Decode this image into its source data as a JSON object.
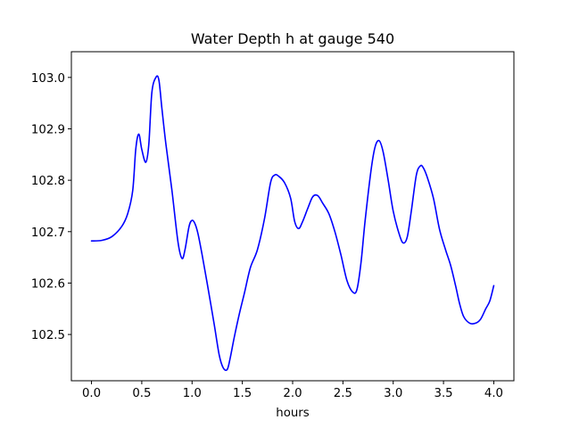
{
  "chart_data": {
    "type": "line",
    "title": "Water Depth h at gauge 540",
    "xlabel": "hours",
    "ylabel": "",
    "xlim": [
      -0.2,
      4.2
    ],
    "ylim": [
      102.41,
      103.05
    ],
    "grid": false,
    "x_ticks": [
      0.0,
      0.5,
      1.0,
      1.5,
      2.0,
      2.5,
      3.0,
      3.5,
      4.0
    ],
    "x_tick_labels": [
      "0.0",
      "0.5",
      "1.0",
      "1.5",
      "2.0",
      "2.5",
      "3.0",
      "3.5",
      "4.0"
    ],
    "y_ticks": [
      102.5,
      102.6,
      102.7,
      102.8,
      102.9,
      103.0
    ],
    "y_tick_labels": [
      "102.5",
      "102.6",
      "102.7",
      "102.8",
      "102.9",
      "103.0"
    ],
    "series": [
      {
        "color": "#0000ff",
        "x": [
          0.0,
          0.1,
          0.2,
          0.3,
          0.36,
          0.41,
          0.44,
          0.47,
          0.5,
          0.54,
          0.57,
          0.6,
          0.64,
          0.67,
          0.7,
          0.74,
          0.8,
          0.86,
          0.9,
          0.93,
          0.97,
          1.0,
          1.03,
          1.06,
          1.1,
          1.15,
          1.22,
          1.27,
          1.31,
          1.35,
          1.38,
          1.42,
          1.47,
          1.52,
          1.58,
          1.65,
          1.72,
          1.78,
          1.82,
          1.86,
          1.92,
          1.98,
          2.02,
          2.06,
          2.1,
          2.15,
          2.2,
          2.25,
          2.3,
          2.36,
          2.42,
          2.48,
          2.54,
          2.6,
          2.64,
          2.68,
          2.72,
          2.78,
          2.82,
          2.86,
          2.9,
          2.95,
          3.0,
          3.06,
          3.1,
          3.14,
          3.18,
          3.23,
          3.27,
          3.3,
          3.34,
          3.4,
          3.46,
          3.52,
          3.57,
          3.62,
          3.66,
          3.7,
          3.76,
          3.82,
          3.87,
          3.92,
          3.96,
          4.0
        ],
        "y": [
          102.682,
          102.683,
          102.69,
          102.71,
          102.735,
          102.78,
          102.86,
          102.89,
          102.86,
          102.835,
          102.87,
          102.97,
          103.0,
          102.995,
          102.94,
          102.87,
          102.78,
          102.68,
          102.648,
          102.665,
          102.71,
          102.722,
          102.715,
          102.695,
          102.655,
          102.6,
          102.52,
          102.46,
          102.435,
          102.432,
          102.455,
          102.495,
          102.54,
          102.58,
          102.63,
          102.665,
          102.725,
          102.795,
          102.81,
          102.808,
          102.795,
          102.765,
          102.72,
          102.706,
          102.72,
          102.745,
          102.768,
          102.77,
          102.755,
          102.735,
          102.7,
          102.655,
          102.605,
          102.582,
          102.588,
          102.64,
          102.72,
          102.82,
          102.865,
          102.877,
          102.855,
          102.8,
          102.74,
          102.695,
          102.678,
          102.69,
          102.74,
          102.81,
          102.828,
          102.824,
          102.805,
          102.765,
          102.705,
          102.665,
          102.635,
          102.595,
          102.56,
          102.535,
          102.522,
          102.522,
          102.53,
          102.55,
          102.565,
          102.595
        ]
      }
    ]
  }
}
